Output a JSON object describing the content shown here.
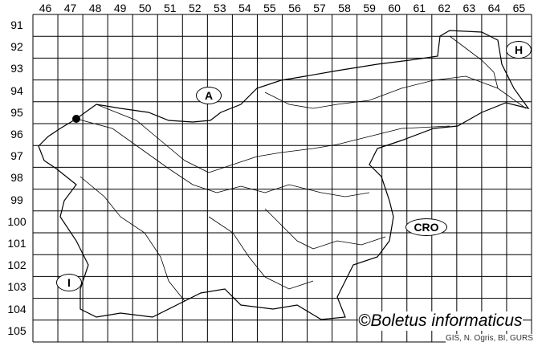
{
  "map": {
    "columns": [
      "46",
      "47",
      "48",
      "49",
      "50",
      "51",
      "52",
      "53",
      "54",
      "55",
      "56",
      "57",
      "58",
      "59",
      "60",
      "61",
      "62",
      "63",
      "64",
      "65"
    ],
    "rows": [
      "91",
      "92",
      "93",
      "94",
      "95",
      "96",
      "97",
      "98",
      "99",
      "100",
      "101",
      "102",
      "103",
      "104",
      "105"
    ],
    "country_labels": [
      {
        "code": "A",
        "name": "Austria"
      },
      {
        "code": "H",
        "name": "Hungary"
      },
      {
        "code": "CRO",
        "name": "Croatia"
      },
      {
        "code": "I",
        "name": "Italy"
      }
    ],
    "records": [
      {
        "column": "47",
        "row": "95"
      }
    ],
    "copyright": "©Boletus informaticus",
    "credit": "GIS, N. Ogris, BI, GURS"
  }
}
